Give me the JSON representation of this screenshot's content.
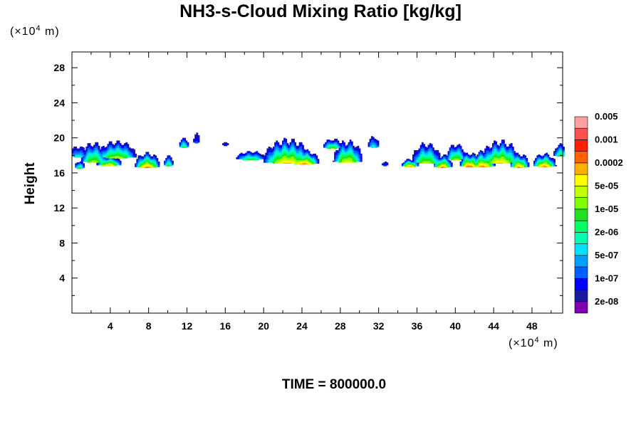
{
  "title": "NH3-s-Cloud Mixing Ratio [kg/kg]",
  "y_scale_label": "(×10",
  "y_scale_exp": "4",
  "y_scale_unit": " m)",
  "x_scale_label": "(×10",
  "x_scale_exp": "4",
  "x_scale_unit": " m)",
  "footer": "TIME = 800000.0",
  "chart_data": {
    "type": "heatmap",
    "title": "NH3-s-Cloud Mixing Ratio [kg/kg]",
    "xlabel": "",
    "ylabel": "Height",
    "xlim": [
      0,
      51.2
    ],
    "ylim": [
      0,
      29.8
    ],
    "x_ticks": [
      4,
      8,
      12,
      16,
      20,
      24,
      28,
      32,
      36,
      40,
      44,
      48
    ],
    "y_ticks": [
      4,
      8,
      12,
      16,
      20,
      24,
      28
    ],
    "colorbar": {
      "levels_labeled": [
        "2e-08",
        "1e-07",
        "5e-07",
        "2e-06",
        "1e-05",
        "5e-05",
        "0.0002",
        "0.001",
        "0.005"
      ],
      "colors": [
        "#7f00b0",
        "#1a1aa0",
        "#0000ff",
        "#0060ff",
        "#00a0ff",
        "#00e0ff",
        "#00ffb0",
        "#00ff60",
        "#20e020",
        "#80ff00",
        "#c0ff00",
        "#ffff00",
        "#ffb000",
        "#ff6000",
        "#ff2000",
        "#ff5050",
        "#ffa0a0"
      ]
    },
    "clouds": [
      {
        "x": 0.6,
        "ybase": 17.9,
        "top": 19.1,
        "w": 0.9,
        "peak": 6
      },
      {
        "x": 0.7,
        "ybase": 16.6,
        "top": 17.4,
        "w": 0.5,
        "peak": 9
      },
      {
        "x": 2.2,
        "ybase": 17.3,
        "top": 19.6,
        "w": 1.3,
        "peak": 10
      },
      {
        "x": 4.6,
        "ybase": 17.8,
        "top": 19.7,
        "w": 2.0,
        "peak": 10
      },
      {
        "x": 3.8,
        "ybase": 16.9,
        "top": 18.0,
        "w": 1.3,
        "peak": 12
      },
      {
        "x": 7.8,
        "ybase": 16.7,
        "top": 18.4,
        "w": 1.3,
        "peak": 13
      },
      {
        "x": 10.0,
        "ybase": 16.9,
        "top": 18.0,
        "w": 0.5,
        "peak": 8
      },
      {
        "x": 11.6,
        "ybase": 19.0,
        "top": 20.0,
        "w": 0.5,
        "peak": 8
      },
      {
        "x": 12.9,
        "ybase": 19.5,
        "top": 20.6,
        "w": 0.3,
        "peak": 3
      },
      {
        "x": 15.9,
        "ybase": 19.2,
        "top": 19.5,
        "w": 0.3,
        "peak": 2
      },
      {
        "x": 18.6,
        "ybase": 17.6,
        "top": 18.5,
        "w": 1.5,
        "peak": 8
      },
      {
        "x": 22.4,
        "ybase": 17.2,
        "top": 20.0,
        "w": 2.5,
        "peak": 12
      },
      {
        "x": 24.1,
        "ybase": 17.1,
        "top": 18.7,
        "w": 1.6,
        "peak": 13
      },
      {
        "x": 27.1,
        "ybase": 18.9,
        "top": 19.9,
        "w": 1.0,
        "peak": 9
      },
      {
        "x": 28.7,
        "ybase": 17.3,
        "top": 19.8,
        "w": 1.5,
        "peak": 11
      },
      {
        "x": 31.4,
        "ybase": 19.0,
        "top": 20.2,
        "w": 0.6,
        "peak": 6
      },
      {
        "x": 32.6,
        "ybase": 16.9,
        "top": 17.3,
        "w": 0.3,
        "peak": 3
      },
      {
        "x": 35.2,
        "ybase": 16.8,
        "top": 17.6,
        "w": 0.9,
        "peak": 13
      },
      {
        "x": 36.9,
        "ybase": 17.2,
        "top": 19.5,
        "w": 1.5,
        "peak": 10
      },
      {
        "x": 38.6,
        "ybase": 16.7,
        "top": 18.1,
        "w": 1.0,
        "peak": 13
      },
      {
        "x": 40.0,
        "ybase": 17.6,
        "top": 19.4,
        "w": 1.0,
        "peak": 10
      },
      {
        "x": 41.4,
        "ybase": 16.8,
        "top": 18.4,
        "w": 1.0,
        "peak": 14
      },
      {
        "x": 42.8,
        "ybase": 16.8,
        "top": 18.6,
        "w": 1.3,
        "peak": 13
      },
      {
        "x": 44.6,
        "ybase": 17.2,
        "top": 19.8,
        "w": 2.0,
        "peak": 12
      },
      {
        "x": 46.6,
        "ybase": 16.7,
        "top": 18.3,
        "w": 1.0,
        "peak": 13
      },
      {
        "x": 49.2,
        "ybase": 16.8,
        "top": 18.3,
        "w": 1.2,
        "peak": 13
      },
      {
        "x": 50.9,
        "ybase": 18.0,
        "top": 19.4,
        "w": 0.7,
        "peak": 8
      }
    ]
  }
}
